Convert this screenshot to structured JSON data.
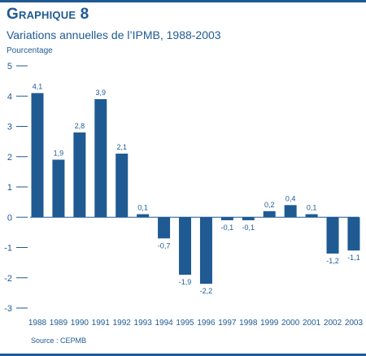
{
  "figure": {
    "title": "Graphique 8",
    "subtitle": "Variations annuelles de l’IPMB, 1988-2003",
    "ylabel": "Pourcentage",
    "source": "Source :  CEPMB"
  },
  "colors": {
    "bar": "#1f5a93",
    "text": "#1f5a93",
    "axis": "#1f5a93"
  },
  "chart_data": {
    "type": "bar",
    "title": "Graphique 8",
    "subtitle": "Variations annuelles de l’IPMB, 1988-2003",
    "xlabel": "",
    "ylabel": "Pourcentage",
    "ylim": [
      -3,
      5
    ],
    "yticks": [
      5,
      4,
      3,
      2,
      1,
      0,
      -1,
      -2,
      -3
    ],
    "ytick_labels": [
      "5",
      "4",
      "3",
      "2",
      "1",
      "0",
      "-1",
      "-2",
      "-3"
    ],
    "grid": false,
    "categories": [
      "1988",
      "1989",
      "1990",
      "1991",
      "1992",
      "1993",
      "1994",
      "1995",
      "1996",
      "1997",
      "1998",
      "1999",
      "2000",
      "2001",
      "2002",
      "2003"
    ],
    "values": [
      4.1,
      1.9,
      2.8,
      3.9,
      2.1,
      0.1,
      -0.7,
      -1.9,
      -2.2,
      -0.1,
      -0.1,
      0.2,
      0.4,
      0.1,
      -1.2,
      -1.1
    ],
    "value_labels": [
      "4,1",
      "1,9",
      "2,8",
      "3,9",
      "2,1",
      "0,1",
      "-0,7",
      "-1,9",
      "-2,2",
      "-0,1",
      "-0,1",
      "0,2",
      "0,4",
      "0,1",
      "-1,2",
      "-1,1"
    ]
  }
}
